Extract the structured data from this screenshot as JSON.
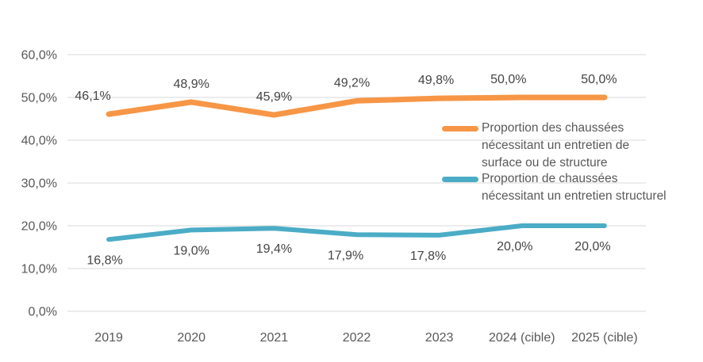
{
  "chart_data": {
    "type": "line",
    "title": "",
    "xlabel": "",
    "ylabel": "",
    "categories": [
      "2019",
      "2020",
      "2021",
      "2022",
      "2023",
      "2024 (cible)",
      "2025 (cible)"
    ],
    "series": [
      {
        "name": "Proportion des chaussées nécessitant un entretien de surface ou de structure",
        "label_lines": [
          "Proportion des chaussées",
          "nécessitant un entretien de",
          "surface ou de structure"
        ],
        "values": [
          46.1,
          48.9,
          45.9,
          49.2,
          49.8,
          50.0,
          50.0
        ],
        "point_labels": [
          "46,1%",
          "48,9%",
          "45,9%",
          "49,2%",
          "49,8%",
          "50,0%",
          "50,0%"
        ],
        "color": "#F79646"
      },
      {
        "name": "Proportion de chaussées nécessitant un entretien structurel",
        "label_lines": [
          "Proportion de chaussées",
          "nécessitant un entretien structurel"
        ],
        "values": [
          16.8,
          19.0,
          19.4,
          17.9,
          17.8,
          20.0,
          20.0
        ],
        "point_labels": [
          "16,8%",
          "19,0%",
          "19,4%",
          "17,9%",
          "17,8%",
          "20,0%",
          "20,0%"
        ],
        "color": "#4BACC6"
      }
    ],
    "yticks": {
      "values": [
        60,
        50,
        40,
        30,
        20,
        10,
        0
      ],
      "labels": [
        "60,0%",
        "50,0%",
        "40,0%",
        "30,0%",
        "20,0%",
        "10,0%",
        "0,0%"
      ]
    },
    "ylim": [
      0,
      60
    ],
    "grid": true,
    "legend_position": "inside-right",
    "colors": {
      "background": "#FFFFFF",
      "gridline": "#D9D9D9",
      "axis_text": "#595959",
      "data_label_text": "#444444"
    }
  }
}
